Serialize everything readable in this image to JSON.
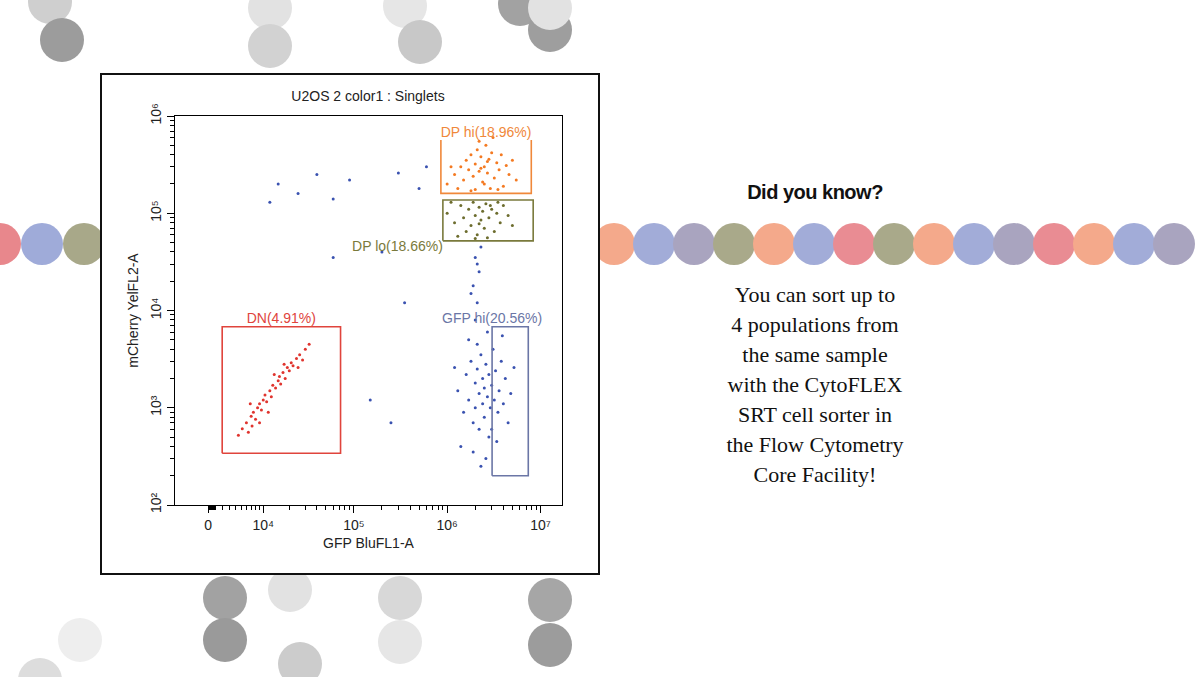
{
  "chart_data": {
    "type": "scatter",
    "title": "U2OS 2 color1 : Singlets",
    "x_label": "GFP BluFL1-A",
    "y_label": "mCherry YelFL2-A",
    "xlim": [
      -5000,
      17000000
    ],
    "xticks": [
      0,
      {
        "value": 10000,
        "label": "10⁴"
      },
      {
        "value": 100000,
        "label": "10⁵"
      },
      {
        "value": 1000000,
        "label": "10⁶"
      },
      {
        "value": 10000000,
        "label": "10⁷"
      }
    ],
    "ylim": [
      100,
      1000000
    ],
    "yticks": [
      {
        "value": 100,
        "label": "10²"
      },
      {
        "value": 1000,
        "label": "10³"
      },
      {
        "value": 10000,
        "label": "10⁴"
      },
      {
        "value": 100000,
        "label": "10⁵"
      },
      {
        "value": 1000000,
        "label": "10⁶"
      }
    ],
    "log": "y",
    "grid": false,
    "series": [
      {
        "color": "#e0342e",
        "x": [
          4500,
          5200,
          6000,
          6400,
          7000,
          7500,
          8000,
          8500,
          9000,
          9500,
          10000,
          10500,
          11000,
          12000,
          12500,
          13000,
          14000,
          15000,
          15500,
          16000,
          17000,
          18000,
          19000,
          20000,
          21000,
          22000,
          24000,
          26000,
          28000,
          30000,
          33000,
          6800,
          11500,
          17500,
          9000,
          25000,
          13500,
          7200
        ],
        "y": [
          520,
          610,
          700,
          560,
          820,
          900,
          760,
          1000,
          1100,
          950,
          1200,
          1350,
          1150,
          1500,
          1300,
          1700,
          1600,
          1900,
          2100,
          1750,
          2300,
          2000,
          2600,
          2400,
          2900,
          2700,
          3200,
          3500,
          3100,
          4000,
          4500,
          1100,
          900,
          2800,
          700,
          2600,
          2200,
          650
        ]
      },
      {
        "color": "#f47a22",
        "x": [
          1000000,
          1200000,
          1400000,
          1500000,
          1600000,
          1700000,
          1800000,
          1900000,
          2000000,
          2100000,
          2200000,
          2300000,
          2400000,
          2500000,
          2600000,
          2700000,
          2800000,
          3000000,
          3200000,
          3400000,
          3600000,
          3800000,
          4000000,
          4300000,
          4600000,
          5000000,
          5500000,
          1300000,
          2000000,
          2900000,
          1100000,
          2200000,
          3100000,
          1800000,
          2500000,
          3500000,
          2300000,
          2700000
        ],
        "y": [
          200000,
          250000,
          300000,
          220000,
          350000,
          280000,
          400000,
          240000,
          320000,
          450000,
          270000,
          380000,
          210000,
          300000,
          500000,
          260000,
          360000,
          420000,
          230000,
          330000,
          280000,
          400000,
          190000,
          310000,
          250000,
          350000,
          220000,
          180000,
          175000,
          180000,
          300000,
          550000,
          600000,
          170000,
          200000,
          175000,
          290000,
          340000
        ]
      },
      {
        "color": "#6d6d2e",
        "x": [
          1000000,
          1200000,
          1400000,
          1500000,
          1600000,
          1700000,
          1800000,
          1900000,
          2000000,
          2100000,
          2200000,
          2300000,
          2400000,
          2500000,
          2600000,
          2800000,
          3000000,
          3200000,
          3400000,
          3700000,
          4000000,
          4500000,
          5000000,
          1300000,
          2000000,
          2700000,
          1100000,
          3500000,
          2200000,
          2900000
        ],
        "y": [
          100000,
          80000,
          120000,
          90000,
          65000,
          110000,
          75000,
          130000,
          95000,
          60000,
          115000,
          85000,
          105000,
          70000,
          125000,
          90000,
          110000,
          65000,
          100000,
          80000,
          120000,
          95000,
          75000,
          58000,
          55000,
          56000,
          130000,
          130000,
          78000,
          120000
        ]
      },
      {
        "color": "#3a52b0",
        "x": [
          1300000,
          1500000,
          1600000,
          1700000,
          1800000,
          1900000,
          2000000,
          2000000,
          2100000,
          2200000,
          2200000,
          2300000,
          2400000,
          2400000,
          2500000,
          2500000,
          2600000,
          2700000,
          2800000,
          2800000,
          2900000,
          3000000,
          3100000,
          3200000,
          3300000,
          3500000,
          3600000,
          3800000,
          4000000,
          4200000,
          4500000,
          4800000,
          5200000,
          1400000,
          1900000,
          2600000,
          3400000,
          2100000,
          2700000,
          1200000,
          1700000,
          3000000,
          2300000,
          3900000,
          2000000,
          2100000,
          1900000,
          2200000,
          2000000,
          2300000,
          1800000,
          2100000,
          15000,
          25000,
          40000,
          60000,
          90000,
          300000,
          500000,
          12000,
          200000,
          350000,
          150000,
          60000,
          250000,
          600000
        ],
        "y": [
          1500,
          900,
          2200,
          1200,
          3000,
          700,
          1800,
          1000,
          2500,
          1400,
          600,
          3500,
          1100,
          2000,
          800,
          1600,
          2800,
          1300,
          500,
          2200,
          1000,
          1700,
          4000,
          1200,
          2400,
          900,
          1500,
          3000,
          1100,
          2000,
          700,
          1400,
          2600,
          400,
          350,
          300,
          450,
          4500,
          6000,
          2600,
          5000,
          600,
          250,
          5500,
          8000,
          12000,
          18000,
          25000,
          35000,
          45000,
          15000,
          30000,
          200000,
          160000,
          250000,
          140000,
          220000,
          260000,
          180000,
          130000,
          40000,
          12000,
          1200,
          35000,
          700,
          300000
        ]
      }
    ],
    "gates": [
      {
        "label": "DP hi(18.96%)",
        "color": "#f0883a",
        "x": [
          857000,
          857000,
          7970000,
          7970000
        ],
        "y": [
          566000,
          160000,
          160000,
          566000
        ]
      },
      {
        "label": "DP lo(18.66%)",
        "color": "#7a7a3c",
        "x": [
          900000,
          900000,
          8350000,
          8350000,
          900000
        ],
        "y": [
          52000,
          137000,
          137000,
          52000,
          52000
        ]
      },
      {
        "label": "DN(4.91%)",
        "color": "#e0443c",
        "x": [
          1950,
          1950,
          72000,
          72000,
          1950
        ],
        "y": [
          340,
          6800,
          6800,
          340,
          340
        ]
      },
      {
        "label": "GFP hi(20.56%)",
        "color": "#6b76a6",
        "x": [
          3030000,
          3030000,
          7400000,
          7400000,
          3030000
        ],
        "y": [
          200,
          6800,
          6800,
          200,
          200
        ]
      }
    ]
  },
  "sidebar": {
    "heading": "Did you know?",
    "text_lines": [
      "You can sort up to",
      "4 populations from",
      "the same sample",
      "with the CytoFLEX",
      "SRT cell sorter in",
      "the Flow Cytometry",
      "Core Facility!"
    ]
  }
}
